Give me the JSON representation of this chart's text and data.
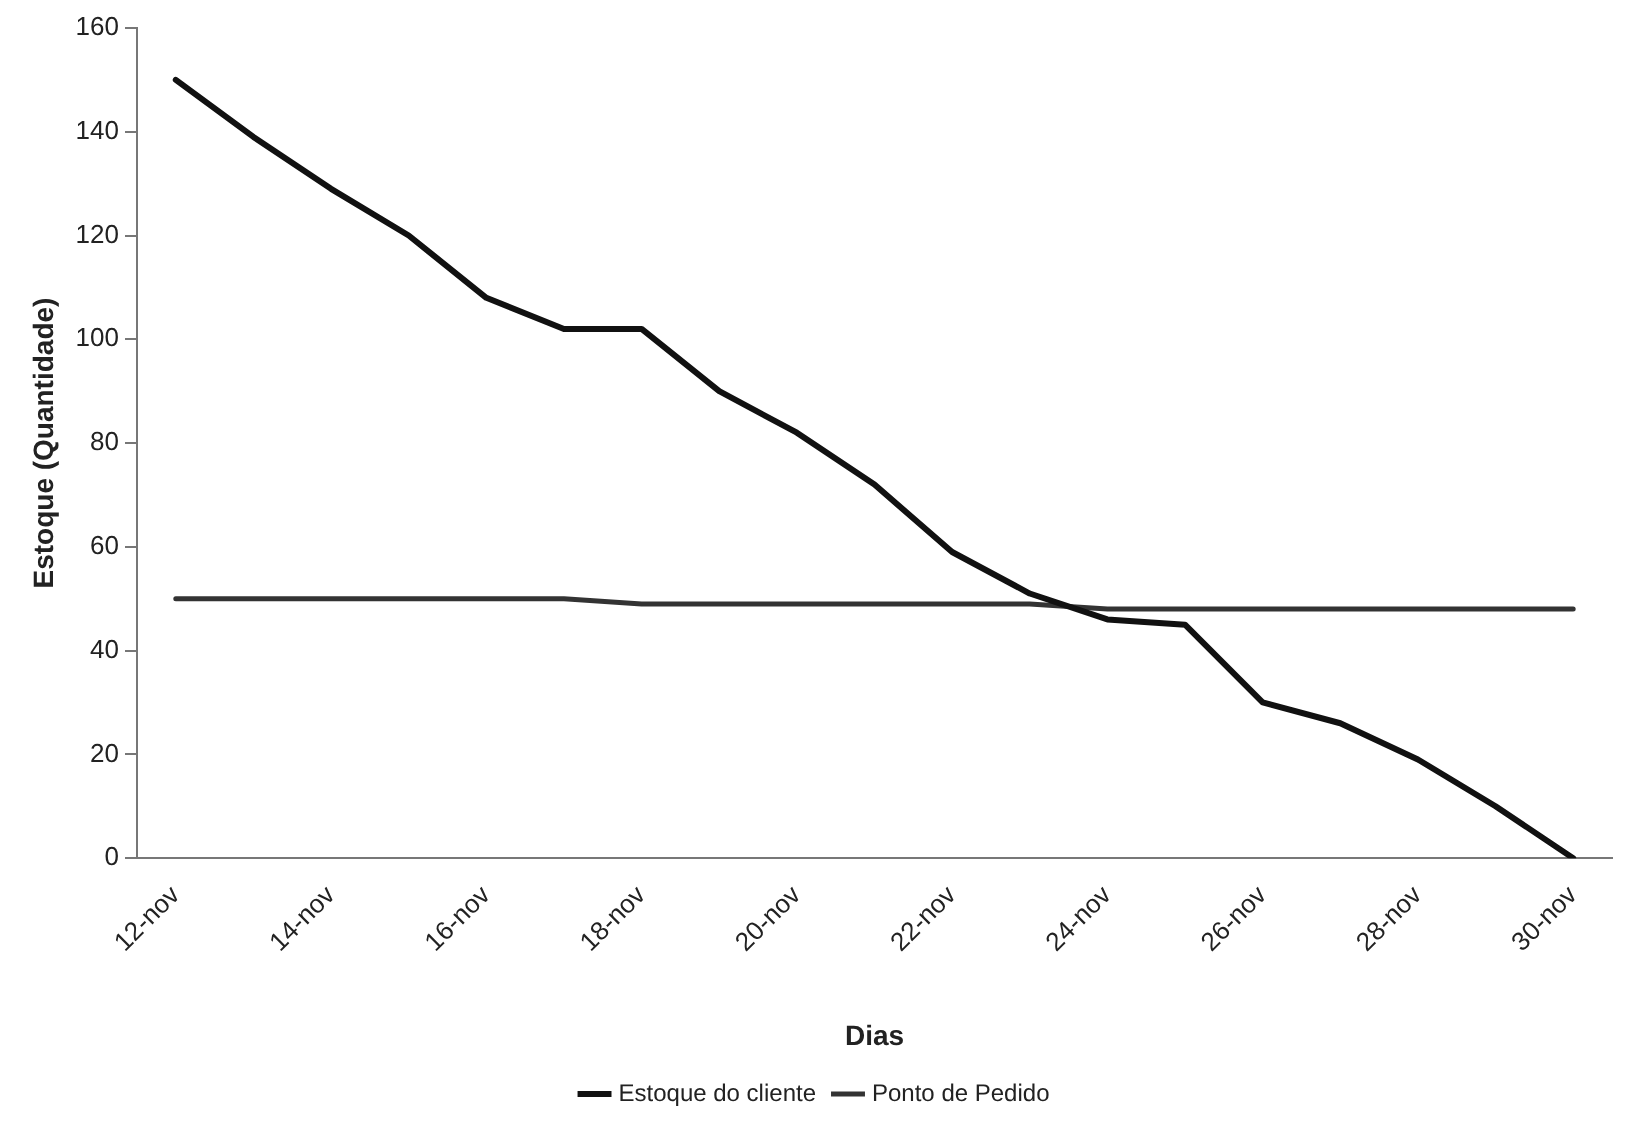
{
  "chart_data": {
    "type": "line",
    "xlabel": "Dias",
    "ylabel": "Estoque (Quantidade)",
    "categories": [
      "12-nov",
      null,
      "14-nov",
      null,
      "16-nov",
      null,
      "18-nov",
      null,
      "20-nov",
      null,
      "22-nov",
      null,
      "24-nov",
      null,
      "26-nov",
      null,
      "28-nov",
      null,
      "30-nov"
    ],
    "series": [
      {
        "name": "Estoque do cliente",
        "color": "#111111",
        "values": [
          150,
          139,
          129,
          120,
          108,
          102,
          102,
          90,
          82,
          72,
          59,
          51,
          46,
          45,
          30,
          26,
          19,
          10,
          0
        ]
      },
      {
        "name": "Ponto de Pedido",
        "color": "#333333",
        "values": [
          50,
          50,
          50,
          50,
          50,
          50,
          49,
          49,
          49,
          49,
          49,
          49,
          48,
          48,
          48,
          48,
          48,
          48,
          48
        ]
      }
    ],
    "ylim": [
      0,
      160
    ],
    "yticks": [
      0,
      20,
      40,
      60,
      80,
      100,
      120,
      140,
      160
    ],
    "grid": false,
    "legend": "bottom",
    "marker": "none",
    "line_style": "solid"
  }
}
